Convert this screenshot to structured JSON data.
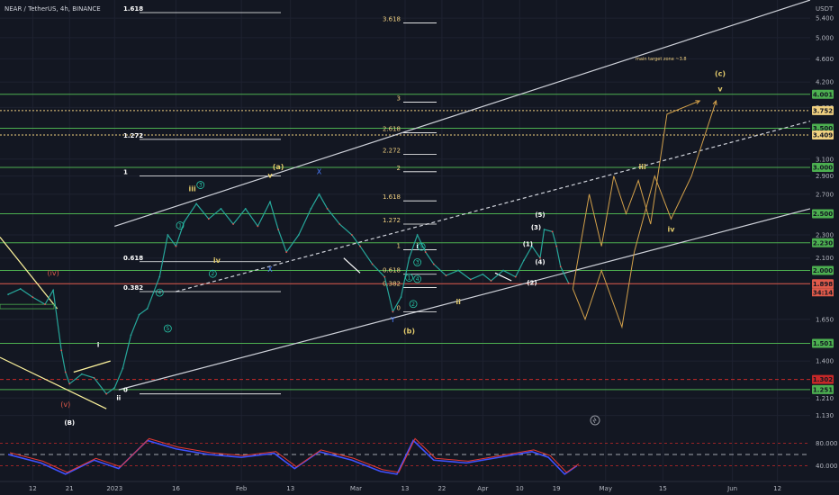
{
  "symbol": "NEAR / TetherUS, 4h, BINANCE",
  "currency": "USDT",
  "chart_data": {
    "type": "line",
    "title": "",
    "ylabel": "",
    "xlabel": "",
    "ylim": [
      1.07,
      5.8
    ],
    "y_scale": "log",
    "y_ticks": [
      "5.400",
      "5.000",
      "4.600",
      "4.200",
      "3.800",
      "3.100",
      "2.900",
      "2.700",
      "2.300",
      "2.100",
      "1.900",
      "1.650",
      "1.400",
      "1.210",
      "1.130"
    ],
    "y_tick_values": [
      5.4,
      5.0,
      4.6,
      4.2,
      3.8,
      3.1,
      2.9,
      2.7,
      2.3,
      2.1,
      1.9,
      1.65,
      1.4,
      1.21,
      1.13
    ],
    "x_ticks": [
      "12",
      "21",
      "2023",
      "16",
      "Feb",
      "13",
      "Mar",
      "13",
      "22",
      "Apr",
      "10",
      "19",
      "May",
      "15",
      "Jun",
      "12"
    ],
    "x_tick_dates": [
      "2022-12-12",
      "2022-12-21",
      "2023-01-01",
      "2023-01-16",
      "2023-02-01",
      "2023-02-13",
      "2023-03-01",
      "2023-03-13",
      "2023-03-22",
      "2023-04-01",
      "2023-04-10",
      "2023-04-19",
      "2023-05-01",
      "2023-05-15",
      "2023-06-01",
      "2023-06-12"
    ],
    "series": [
      {
        "type": "close",
        "points": [
          [
            "2022-12-06",
            1.82
          ],
          [
            "2022-12-09",
            1.86
          ],
          [
            "2022-12-12",
            1.8
          ],
          [
            "2022-12-15",
            1.75
          ],
          [
            "2022-12-17",
            1.85
          ],
          [
            "2022-12-19",
            1.46
          ],
          [
            "2022-12-20",
            1.34
          ],
          [
            "2022-12-21",
            1.28
          ],
          [
            "2022-12-24",
            1.33
          ],
          [
            "2022-12-27",
            1.31
          ],
          [
            "2022-12-30",
            1.23
          ],
          [
            "2023-01-01",
            1.26
          ],
          [
            "2023-01-03",
            1.36
          ],
          [
            "2023-01-05",
            1.55
          ],
          [
            "2023-01-07",
            1.68
          ],
          [
            "2023-01-09",
            1.72
          ],
          [
            "2023-01-12",
            1.95
          ],
          [
            "2023-01-14",
            2.3
          ],
          [
            "2023-01-16",
            2.2
          ],
          [
            "2023-01-18",
            2.42
          ],
          [
            "2023-01-21",
            2.6
          ],
          [
            "2023-01-24",
            2.45
          ],
          [
            "2023-01-27",
            2.55
          ],
          [
            "2023-01-30",
            2.4
          ],
          [
            "2023-02-02",
            2.55
          ],
          [
            "2023-02-05",
            2.38
          ],
          [
            "2023-02-08",
            2.62
          ],
          [
            "2023-02-10",
            2.35
          ],
          [
            "2023-02-12",
            2.15
          ],
          [
            "2023-02-15",
            2.3
          ],
          [
            "2023-02-18",
            2.55
          ],
          [
            "2023-02-20",
            2.7
          ],
          [
            "2023-02-22",
            2.55
          ],
          [
            "2023-02-25",
            2.4
          ],
          [
            "2023-02-28",
            2.3
          ],
          [
            "2023-03-02",
            2.2
          ],
          [
            "2023-03-05",
            2.05
          ],
          [
            "2023-03-08",
            1.95
          ],
          [
            "2023-03-10",
            1.7
          ],
          [
            "2023-03-12",
            1.8
          ],
          [
            "2023-03-14",
            2.1
          ],
          [
            "2023-03-16",
            2.3
          ],
          [
            "2023-03-18",
            2.15
          ],
          [
            "2023-03-20",
            2.05
          ],
          [
            "2023-03-23",
            1.96
          ],
          [
            "2023-03-26",
            2.0
          ],
          [
            "2023-03-29",
            1.93
          ],
          [
            "2023-04-01",
            1.97
          ],
          [
            "2023-04-03",
            1.92
          ],
          [
            "2023-04-06",
            2.0
          ],
          [
            "2023-04-09",
            1.95
          ],
          [
            "2023-04-11",
            2.08
          ],
          [
            "2023-04-13",
            2.2
          ],
          [
            "2023-04-15",
            2.1
          ],
          [
            "2023-04-16",
            2.35
          ],
          [
            "2023-04-18",
            2.33
          ],
          [
            "2023-04-19",
            2.2
          ],
          [
            "2023-04-20",
            2.03
          ],
          [
            "2023-04-22",
            1.9
          ]
        ]
      },
      {
        "type": "projection",
        "points": [
          [
            "2023-04-23",
            1.86
          ],
          [
            "2023-04-27",
            2.7
          ],
          [
            "2023-04-30",
            2.2
          ],
          [
            "2023-05-03",
            2.9
          ],
          [
            "2023-05-06",
            2.5
          ],
          [
            "2023-05-09",
            2.85
          ],
          [
            "2023-05-12",
            2.4
          ],
          [
            "2023-05-16",
            3.7
          ],
          [
            "2023-05-24",
            3.9
          ]
        ]
      },
      {
        "type": "projection",
        "points": [
          [
            "2023-04-23",
            1.86
          ],
          [
            "2023-04-26",
            1.65
          ],
          [
            "2023-04-30",
            2.0
          ],
          [
            "2023-05-05",
            1.6
          ],
          [
            "2023-05-08",
            2.15
          ],
          [
            "2023-05-13",
            2.9
          ],
          [
            "2023-05-17",
            2.45
          ],
          [
            "2023-05-22",
            2.9
          ],
          [
            "2023-05-28",
            3.9
          ]
        ]
      },
      {
        "type": "indicator",
        "scale": "RSI",
        "points": [
          [
            "2022-12-06",
            60
          ],
          [
            "2022-12-14",
            45
          ],
          [
            "2022-12-20",
            25
          ],
          [
            "2022-12-27",
            50
          ],
          [
            "2023-01-02",
            35
          ],
          [
            "2023-01-09",
            85
          ],
          [
            "2023-01-16",
            70
          ],
          [
            "2023-01-24",
            60
          ],
          [
            "2023-02-01",
            55
          ],
          [
            "2023-02-09",
            62
          ],
          [
            "2023-02-14",
            35
          ],
          [
            "2023-02-20",
            65
          ],
          [
            "2023-02-28",
            50
          ],
          [
            "2023-03-07",
            30
          ],
          [
            "2023-03-11",
            25
          ],
          [
            "2023-03-15",
            85
          ],
          [
            "2023-03-20",
            50
          ],
          [
            "2023-03-28",
            45
          ],
          [
            "2023-04-05",
            55
          ],
          [
            "2023-04-13",
            65
          ],
          [
            "2023-04-17",
            55
          ],
          [
            "2023-04-21",
            25
          ],
          [
            "2023-04-24",
            40
          ]
        ]
      }
    ],
    "horizontal_levels": [
      {
        "price": 4.001,
        "label": "4.001",
        "color": "#4caf50"
      },
      {
        "price": 3.752,
        "label": "3.752",
        "color": "#f0d080"
      },
      {
        "price": 3.5,
        "label": "3.500",
        "color": "#4caf50"
      },
      {
        "price": 3.409,
        "label": "3.409",
        "color": "#f0d080"
      },
      {
        "price": 3.0,
        "label": "3.000",
        "color": "#4caf50"
      },
      {
        "price": 2.5,
        "label": "2.500",
        "color": "#4caf50"
      },
      {
        "price": 2.23,
        "label": "2.230",
        "color": "#4caf50"
      },
      {
        "price": 2.0,
        "label": "2.000",
        "color": "#4caf50"
      },
      {
        "price": 1.898,
        "label": "1.898",
        "color": "#e05a4a"
      },
      {
        "price": 1.501,
        "label": "1.501",
        "color": "#4caf50"
      },
      {
        "price": 1.302,
        "label": "1.302",
        "color": "#c62828"
      },
      {
        "price": 1.251,
        "label": "1.251",
        "color": "#4caf50"
      }
    ],
    "price_tag_time": "34:14",
    "indicator_levels": {
      "upper": "80.000",
      "lower": "40.000"
    },
    "wave_labels": [
      {
        "text": "(c)",
        "date": "2023-05-29",
        "price": 4.3,
        "style": "yellow"
      },
      {
        "text": "v",
        "date": "2023-05-29",
        "price": 4.05,
        "style": "yellow"
      },
      {
        "text": "(a)",
        "date": "2023-02-10",
        "price": 2.98,
        "style": "yellow"
      },
      {
        "text": "v",
        "date": "2023-02-08",
        "price": 2.88,
        "style": "yellow"
      },
      {
        "text": "iii",
        "date": "2023-01-20",
        "price": 2.73,
        "style": "yellow"
      },
      {
        "text": "iv",
        "date": "2023-01-26",
        "price": 2.06,
        "style": "yellow"
      },
      {
        "text": "iii",
        "date": "2023-05-10",
        "price": 2.98,
        "style": "yellow"
      },
      {
        "text": "iv",
        "date": "2023-05-17",
        "price": 2.33,
        "style": "yellow"
      },
      {
        "text": "(b)",
        "date": "2023-03-14",
        "price": 1.56,
        "style": "yellow"
      },
      {
        "text": "ii",
        "date": "2023-03-26",
        "price": 1.75,
        "style": "yellow"
      },
      {
        "text": "i",
        "date": "2023-03-16",
        "price": 2.18,
        "style": "white"
      },
      {
        "text": "i",
        "date": "2022-12-28",
        "price": 1.48,
        "style": "white"
      },
      {
        "text": "ii",
        "date": "2023-01-02",
        "price": 1.2,
        "style": "white"
      },
      {
        "text": "(B)",
        "date": "2022-12-21",
        "price": 1.09,
        "style": "white"
      },
      {
        "text": "(iv)",
        "date": "2022-12-17",
        "price": 1.96,
        "style": "red"
      },
      {
        "text": "(v)",
        "date": "2022-12-20",
        "price": 1.17,
        "style": "red"
      },
      {
        "text": "(5)",
        "date": "2023-04-15",
        "price": 2.47,
        "style": "white"
      },
      {
        "text": "(3)",
        "date": "2023-04-14",
        "price": 2.35,
        "style": "white"
      },
      {
        "text": "(1)",
        "date": "2023-04-12",
        "price": 2.2,
        "style": "white"
      },
      {
        "text": "(4)",
        "date": "2023-04-15",
        "price": 2.05,
        "style": "white"
      },
      {
        "text": "(2)",
        "date": "2023-04-13",
        "price": 1.89,
        "style": "white"
      },
      {
        "text": "1",
        "date": "2023-01-17",
        "price": 2.37,
        "style": "green"
      },
      {
        "text": "2",
        "date": "2023-01-25",
        "price": 1.96,
        "style": "green"
      },
      {
        "text": "3",
        "date": "2023-01-22",
        "price": 2.78,
        "style": "green"
      },
      {
        "text": "4",
        "date": "2023-01-12",
        "price": 1.82,
        "style": "green"
      },
      {
        "text": "5",
        "date": "2023-01-14",
        "price": 1.58,
        "style": "green"
      },
      {
        "text": "1",
        "date": "2023-03-14",
        "price": 1.93,
        "style": "green"
      },
      {
        "text": "2",
        "date": "2023-03-15",
        "price": 1.74,
        "style": "green"
      },
      {
        "text": "3",
        "date": "2023-03-16",
        "price": 2.05,
        "style": "green"
      },
      {
        "text": "4",
        "date": "2023-03-16",
        "price": 1.92,
        "style": "green"
      },
      {
        "text": "5",
        "date": "2023-03-17",
        "price": 2.18,
        "style": "green"
      },
      {
        "text": "Y",
        "date": "2023-03-10",
        "price": 1.63,
        "style": "blue"
      },
      {
        "text": "X",
        "date": "2023-02-20",
        "price": 2.92,
        "style": "blue"
      },
      {
        "text": "X",
        "date": "2023-02-08",
        "price": 1.99,
        "style": "blue"
      }
    ],
    "fib_retracement_1": [
      {
        "ratio": "1.618",
        "price": 5.52
      },
      {
        "ratio": "1.272",
        "price": 3.35
      },
      {
        "ratio": "1",
        "price": 2.9
      },
      {
        "ratio": "0.618",
        "price": 2.07
      },
      {
        "ratio": "0.382",
        "price": 1.84
      },
      {
        "ratio": "0",
        "price": 1.23
      }
    ],
    "fib_retracement_2": [
      {
        "ratio": "3.618",
        "price": 5.3
      },
      {
        "ratio": "3",
        "price": 3.88
      },
      {
        "ratio": "2.618",
        "price": 3.44
      },
      {
        "ratio": "2.272",
        "price": 3.16
      },
      {
        "ratio": "2",
        "price": 2.95
      },
      {
        "ratio": "1.618",
        "price": 2.63
      },
      {
        "ratio": "1.272",
        "price": 2.4
      },
      {
        "ratio": "1",
        "price": 2.17
      },
      {
        "ratio": "0.618",
        "price": 1.97
      },
      {
        "ratio": "0.382",
        "price": 1.87
      },
      {
        "ratio": "0",
        "price": 1.7
      }
    ],
    "annotation": "main target zone ~3.8"
  }
}
